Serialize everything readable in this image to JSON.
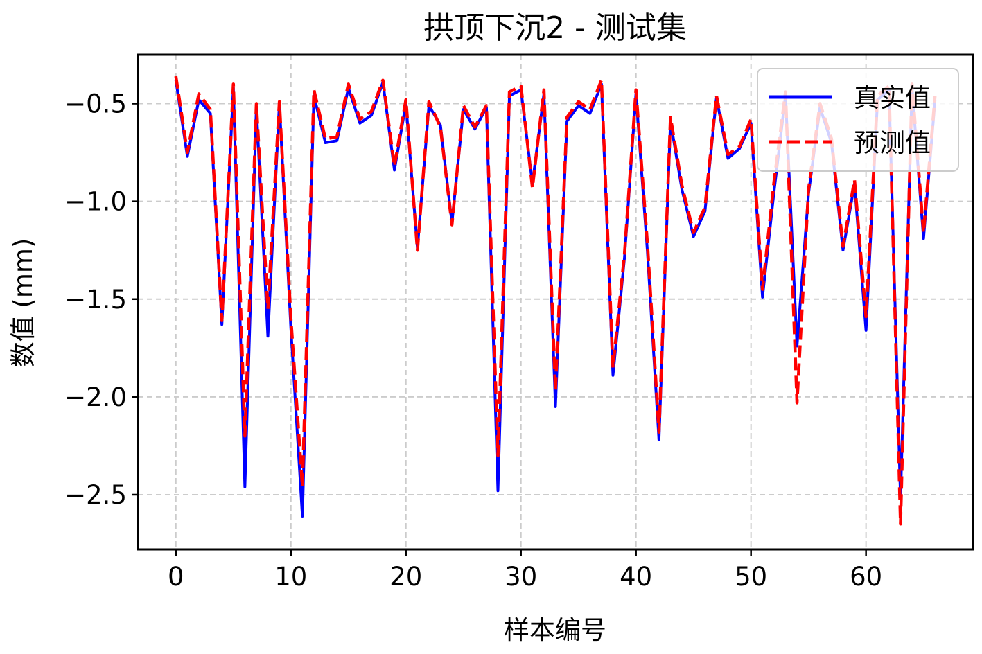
{
  "chart_data": {
    "type": "line",
    "title": "拱顶下沉2 - 测试集",
    "xlabel": "样本编号",
    "ylabel": "数值 (mm)",
    "xlim": [
      -3.3,
      69.3
    ],
    "ylim": [
      -2.78,
      -0.25
    ],
    "x_ticks": [
      0,
      10,
      20,
      30,
      40,
      50,
      60
    ],
    "x_tick_labels": [
      "0",
      "10",
      "20",
      "30",
      "40",
      "50",
      "60"
    ],
    "y_ticks": [
      -0.5,
      -1.0,
      -1.5,
      -2.0,
      -2.5
    ],
    "y_tick_labels": [
      "−0.5",
      "−1.0",
      "−1.5",
      "−2.0",
      "−2.5"
    ],
    "grid": true,
    "legend_position": "top-right",
    "x": [
      0,
      1,
      2,
      3,
      4,
      5,
      6,
      7,
      8,
      9,
      10,
      11,
      12,
      13,
      14,
      15,
      16,
      17,
      18,
      19,
      20,
      21,
      22,
      23,
      24,
      25,
      26,
      27,
      28,
      29,
      30,
      31,
      32,
      33,
      34,
      35,
      36,
      37,
      38,
      39,
      40,
      41,
      42,
      43,
      44,
      45,
      46,
      47,
      48,
      49,
      50,
      51,
      52,
      53,
      54,
      55,
      56,
      57,
      58,
      59,
      60,
      61,
      62,
      63,
      64,
      65,
      66
    ],
    "series": [
      {
        "name": "真实值",
        "color": "#0000ff",
        "style": "solid",
        "values": [
          -0.38,
          -0.77,
          -0.48,
          -0.55,
          -1.63,
          -0.42,
          -2.46,
          -0.52,
          -1.69,
          -0.5,
          -1.65,
          -2.61,
          -0.46,
          -0.7,
          -0.69,
          -0.42,
          -0.6,
          -0.56,
          -0.39,
          -0.84,
          -0.5,
          -1.24,
          -0.51,
          -0.61,
          -1.11,
          -0.53,
          -0.63,
          -0.52,
          -2.48,
          -0.46,
          -0.43,
          -0.91,
          -0.45,
          -2.05,
          -0.59,
          -0.51,
          -0.55,
          -0.4,
          -1.89,
          -1.29,
          -0.45,
          -1.26,
          -2.22,
          -0.59,
          -0.94,
          -1.18,
          -1.05,
          -0.47,
          -0.78,
          -0.73,
          -0.6,
          -1.49,
          -0.95,
          -0.46,
          -1.74,
          -0.96,
          -0.52,
          -0.7,
          -1.25,
          -0.91,
          -1.66,
          -0.48,
          -0.43,
          -2.52,
          -0.42,
          -1.19,
          -0.48
        ]
      },
      {
        "name": "预测值",
        "color": "#ff0000",
        "style": "dashed",
        "values": [
          -0.36,
          -0.75,
          -0.45,
          -0.53,
          -1.61,
          -0.4,
          -2.2,
          -0.5,
          -1.55,
          -0.49,
          -1.6,
          -2.46,
          -0.43,
          -0.68,
          -0.67,
          -0.4,
          -0.58,
          -0.54,
          -0.38,
          -0.82,
          -0.48,
          -1.25,
          -0.49,
          -0.62,
          -1.12,
          -0.51,
          -0.62,
          -0.51,
          -2.3,
          -0.44,
          -0.41,
          -0.93,
          -0.43,
          -1.97,
          -0.57,
          -0.49,
          -0.53,
          -0.38,
          -1.85,
          -1.27,
          -0.43,
          -1.22,
          -2.18,
          -0.57,
          -0.92,
          -1.16,
          -1.03,
          -0.46,
          -0.76,
          -0.72,
          -0.58,
          -1.45,
          -0.9,
          -0.44,
          -2.03,
          -0.94,
          -0.5,
          -0.68,
          -1.23,
          -0.89,
          -1.59,
          -0.46,
          -0.41,
          -2.65,
          -0.4,
          -1.16,
          -0.46
        ]
      }
    ]
  }
}
